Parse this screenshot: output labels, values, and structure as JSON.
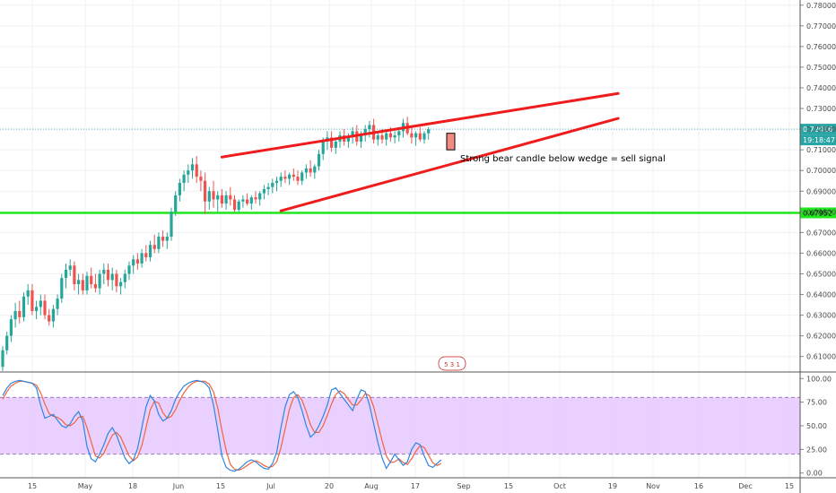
{
  "chart_data": [
    {
      "type": "candlestick",
      "instrument_price_axis": {
        "ylim": [
          0.6025,
          0.7825
        ],
        "ticks": [
          "0.61000",
          "0.62000",
          "0.63000",
          "0.64000",
          "0.65000",
          "0.66000",
          "0.67000",
          "0.68000",
          "0.69000",
          "0.70000",
          "0.71000",
          "0.72000",
          "0.73000",
          "0.74000",
          "0.75000",
          "0.76000",
          "0.77000",
          "0.78000"
        ]
      },
      "x_axis": {
        "tick_labels": [
          "15",
          "May",
          "18",
          "Jun",
          "15",
          "Jul",
          "20",
          "Aug",
          "17",
          "Sep",
          "15",
          "Oct",
          "19",
          "Nov",
          "16",
          "Dec",
          "15"
        ]
      },
      "last_price_label": "0.72016",
      "countdown_label": "19:18:47",
      "support_level": 0.6795,
      "support_label": "0.67952",
      "trend_lines": [
        {
          "name": "wedge-upper",
          "from": [
            52,
            0.7065
          ],
          "to": [
            146,
            0.7373
          ]
        },
        {
          "name": "wedge-lower",
          "from": [
            66,
            0.6805
          ],
          "to": [
            146,
            0.7252
          ]
        }
      ],
      "signal_candle": {
        "open": 0.718,
        "close": 0.71
      },
      "annotation": "Strong bear candle below wedge = sell signal",
      "event_badge": "5 3 1",
      "colors": {
        "bull": "#26a69a",
        "bear": "#ef5350",
        "trend_line": "#ee1c1c",
        "support_line": "#22e61e",
        "price_line": "#5bb8c9",
        "price_tag": "#2aa5a5",
        "signal_fill": "#f28b82"
      },
      "ohlc": [
        [
          0.605,
          0.615,
          0.603,
          0.613
        ],
        [
          0.613,
          0.622,
          0.611,
          0.62
        ],
        [
          0.62,
          0.63,
          0.617,
          0.628
        ],
        [
          0.628,
          0.636,
          0.624,
          0.632
        ],
        [
          0.632,
          0.637,
          0.626,
          0.629
        ],
        [
          0.629,
          0.641,
          0.627,
          0.639
        ],
        [
          0.639,
          0.645,
          0.635,
          0.642
        ],
        [
          0.642,
          0.645,
          0.63,
          0.632
        ],
        [
          0.632,
          0.637,
          0.628,
          0.634
        ],
        [
          0.634,
          0.64,
          0.63,
          0.637
        ],
        [
          0.637,
          0.64,
          0.628,
          0.63
        ],
        [
          0.63,
          0.633,
          0.625,
          0.627
        ],
        [
          0.627,
          0.635,
          0.624,
          0.633
        ],
        [
          0.633,
          0.64,
          0.63,
          0.638
        ],
        [
          0.638,
          0.65,
          0.636,
          0.648
        ],
        [
          0.648,
          0.655,
          0.643,
          0.652
        ],
        [
          0.652,
          0.657,
          0.649,
          0.654
        ],
        [
          0.654,
          0.656,
          0.642,
          0.645
        ],
        [
          0.645,
          0.65,
          0.64,
          0.647
        ],
        [
          0.647,
          0.65,
          0.64,
          0.642
        ],
        [
          0.642,
          0.651,
          0.64,
          0.649
        ],
        [
          0.649,
          0.653,
          0.643,
          0.645
        ],
        [
          0.645,
          0.65,
          0.641,
          0.643
        ],
        [
          0.643,
          0.652,
          0.64,
          0.65
        ],
        [
          0.65,
          0.655,
          0.645,
          0.652
        ],
        [
          0.652,
          0.655,
          0.644,
          0.647
        ],
        [
          0.647,
          0.653,
          0.642,
          0.65
        ],
        [
          0.65,
          0.652,
          0.641,
          0.644
        ],
        [
          0.644,
          0.648,
          0.64,
          0.646
        ],
        [
          0.646,
          0.652,
          0.643,
          0.65
        ],
        [
          0.65,
          0.656,
          0.647,
          0.654
        ],
        [
          0.654,
          0.659,
          0.65,
          0.657
        ],
        [
          0.657,
          0.66,
          0.652,
          0.655
        ],
        [
          0.655,
          0.662,
          0.653,
          0.66
        ],
        [
          0.66,
          0.664,
          0.656,
          0.658
        ],
        [
          0.658,
          0.666,
          0.656,
          0.664
        ],
        [
          0.664,
          0.669,
          0.66,
          0.662
        ],
        [
          0.662,
          0.67,
          0.66,
          0.668
        ],
        [
          0.668,
          0.671,
          0.663,
          0.666
        ],
        [
          0.666,
          0.67,
          0.662,
          0.668
        ],
        [
          0.668,
          0.682,
          0.666,
          0.68
        ],
        [
          0.68,
          0.69,
          0.678,
          0.688
        ],
        [
          0.688,
          0.696,
          0.685,
          0.694
        ],
        [
          0.694,
          0.7,
          0.69,
          0.698
        ],
        [
          0.698,
          0.703,
          0.694,
          0.7
        ],
        [
          0.7,
          0.706,
          0.696,
          0.703
        ],
        [
          0.703,
          0.707,
          0.694,
          0.697
        ],
        [
          0.697,
          0.7,
          0.69,
          0.695
        ],
        [
          0.695,
          0.699,
          0.679,
          0.685
        ],
        [
          0.685,
          0.692,
          0.681,
          0.69
        ],
        [
          0.69,
          0.695,
          0.682,
          0.686
        ],
        [
          0.686,
          0.69,
          0.68,
          0.688
        ],
        [
          0.688,
          0.691,
          0.682,
          0.684
        ],
        [
          0.684,
          0.69,
          0.681,
          0.688
        ],
        [
          0.688,
          0.692,
          0.683,
          0.686
        ],
        [
          0.686,
          0.688,
          0.68,
          0.681
        ],
        [
          0.681,
          0.686,
          0.68,
          0.685
        ],
        [
          0.685,
          0.688,
          0.682,
          0.686
        ],
        [
          0.686,
          0.689,
          0.683,
          0.684
        ],
        [
          0.684,
          0.688,
          0.681,
          0.687
        ],
        [
          0.687,
          0.69,
          0.684,
          0.686
        ],
        [
          0.686,
          0.69,
          0.683,
          0.689
        ],
        [
          0.689,
          0.693,
          0.686,
          0.691
        ],
        [
          0.691,
          0.694,
          0.688,
          0.692
        ],
        [
          0.692,
          0.696,
          0.689,
          0.694
        ],
        [
          0.694,
          0.697,
          0.69,
          0.695
        ],
        [
          0.695,
          0.699,
          0.692,
          0.697
        ],
        [
          0.697,
          0.7,
          0.694,
          0.696
        ],
        [
          0.696,
          0.699,
          0.693,
          0.698
        ],
        [
          0.698,
          0.701,
          0.695,
          0.697
        ],
        [
          0.697,
          0.7,
          0.693,
          0.695
        ],
        [
          0.695,
          0.7,
          0.693,
          0.699
        ],
        [
          0.699,
          0.703,
          0.696,
          0.701
        ],
        [
          0.701,
          0.705,
          0.697,
          0.699
        ],
        [
          0.699,
          0.703,
          0.696,
          0.702
        ],
        [
          0.702,
          0.71,
          0.7,
          0.708
        ],
        [
          0.708,
          0.716,
          0.705,
          0.714
        ],
        [
          0.714,
          0.719,
          0.71,
          0.716
        ],
        [
          0.716,
          0.719,
          0.709,
          0.711
        ],
        [
          0.711,
          0.716,
          0.708,
          0.714
        ],
        [
          0.714,
          0.719,
          0.711,
          0.717
        ],
        [
          0.717,
          0.72,
          0.712,
          0.714
        ],
        [
          0.714,
          0.718,
          0.711,
          0.716
        ],
        [
          0.716,
          0.721,
          0.713,
          0.719
        ],
        [
          0.719,
          0.722,
          0.712,
          0.714
        ],
        [
          0.714,
          0.719,
          0.711,
          0.717
        ],
        [
          0.717,
          0.722,
          0.714,
          0.72
        ],
        [
          0.72,
          0.724,
          0.716,
          0.722
        ],
        [
          0.722,
          0.725,
          0.713,
          0.715
        ],
        [
          0.715,
          0.719,
          0.712,
          0.717
        ],
        [
          0.717,
          0.72,
          0.713,
          0.715
        ],
        [
          0.715,
          0.719,
          0.712,
          0.718
        ],
        [
          0.718,
          0.721,
          0.714,
          0.716
        ],
        [
          0.716,
          0.719,
          0.713,
          0.717
        ],
        [
          0.717,
          0.721,
          0.714,
          0.719
        ],
        [
          0.719,
          0.725,
          0.716,
          0.723
        ],
        [
          0.723,
          0.726,
          0.717,
          0.718
        ],
        [
          0.718,
          0.722,
          0.713,
          0.716
        ],
        [
          0.716,
          0.719,
          0.712,
          0.718
        ],
        [
          0.718,
          0.721,
          0.714,
          0.715
        ],
        [
          0.715,
          0.719,
          0.713,
          0.718
        ],
        [
          0.718,
          0.721,
          0.715,
          0.72
        ]
      ]
    },
    {
      "type": "line",
      "name": "stochastic-oscillator",
      "ylim": [
        -5,
        105
      ],
      "ticks": [
        "100.00",
        "75.00",
        "50.00",
        "25.00",
        "0.00"
      ],
      "band": [
        20,
        80
      ],
      "colors": {
        "k": "#2e86de",
        "d": "#f0643c",
        "band": "#e6c8ff",
        "band_line": "#9b7bb5"
      },
      "k": [
        82,
        90,
        95,
        97,
        98,
        97,
        96,
        95,
        90,
        72,
        58,
        60,
        62,
        56,
        50,
        48,
        52,
        60,
        65,
        55,
        28,
        15,
        12,
        20,
        30,
        42,
        48,
        40,
        28,
        16,
        10,
        14,
        26,
        48,
        70,
        82,
        76,
        62,
        55,
        58,
        66,
        78,
        86,
        92,
        95,
        97,
        98,
        97,
        95,
        90,
        72,
        46,
        18,
        6,
        3,
        2,
        4,
        8,
        12,
        14,
        12,
        8,
        5,
        4,
        10,
        22,
        48,
        70,
        83,
        86,
        80,
        66,
        50,
        38,
        42,
        50,
        60,
        72,
        88,
        90,
        84,
        78,
        72,
        66,
        78,
        88,
        86,
        72,
        52,
        32,
        16,
        5,
        12,
        20,
        14,
        8,
        12,
        25,
        32,
        30,
        18,
        8,
        6,
        10,
        14
      ],
      "d": [
        78,
        86,
        92,
        95,
        97,
        97,
        96,
        95,
        93,
        85,
        73,
        63,
        60,
        59,
        56,
        51,
        50,
        53,
        59,
        60,
        48,
        33,
        18,
        16,
        21,
        31,
        40,
        43,
        38,
        28,
        18,
        13,
        17,
        29,
        48,
        67,
        76,
        74,
        64,
        58,
        60,
        67,
        77,
        85,
        91,
        95,
        97,
        97,
        97,
        94,
        86,
        69,
        45,
        24,
        9,
        4,
        3,
        5,
        8,
        11,
        13,
        11,
        8,
        6,
        7,
        12,
        27,
        47,
        67,
        80,
        83,
        77,
        65,
        51,
        43,
        43,
        50,
        61,
        73,
        83,
        87,
        84,
        78,
        72,
        72,
        77,
        84,
        82,
        70,
        52,
        34,
        18,
        11,
        12,
        15,
        11,
        9,
        15,
        23,
        29,
        27,
        19,
        11,
        8,
        10
      ]
    }
  ]
}
